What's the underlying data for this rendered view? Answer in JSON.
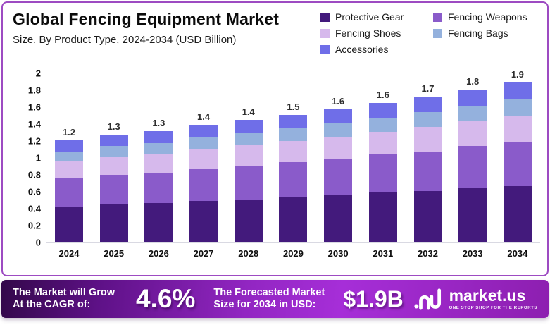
{
  "header": {
    "title": "Global Fencing Equipment Market",
    "subtitle": "Size, By Product Type, 2024-2034 (USD Billion)"
  },
  "chart_data": {
    "type": "bar",
    "stacked": true,
    "title": "Global Fencing Equipment Market Size, By Product Type, 2024-2034 (USD Billion)",
    "categories": [
      "2024",
      "2025",
      "2026",
      "2027",
      "2028",
      "2029",
      "2030",
      "2031",
      "2032",
      "2033",
      "2034"
    ],
    "series": [
      {
        "name": "Protective Gear",
        "color": "#431a7c",
        "values": [
          0.42,
          0.44,
          0.46,
          0.48,
          0.5,
          0.53,
          0.55,
          0.58,
          0.6,
          0.63,
          0.66
        ]
      },
      {
        "name": "Fencing Weapons",
        "color": "#8a5bca",
        "values": [
          0.33,
          0.35,
          0.36,
          0.38,
          0.4,
          0.41,
          0.43,
          0.45,
          0.47,
          0.5,
          0.52
        ]
      },
      {
        "name": "Fencing Shoes",
        "color": "#d6b9ec",
        "values": [
          0.2,
          0.21,
          0.22,
          0.23,
          0.24,
          0.25,
          0.26,
          0.27,
          0.29,
          0.3,
          0.31
        ]
      },
      {
        "name": "Fencing Bags",
        "color": "#94b1dd",
        "values": [
          0.12,
          0.13,
          0.13,
          0.14,
          0.14,
          0.15,
          0.16,
          0.16,
          0.17,
          0.18,
          0.19
        ]
      },
      {
        "name": "Accessories",
        "color": "#6f6ee8",
        "values": [
          0.13,
          0.14,
          0.14,
          0.15,
          0.16,
          0.16,
          0.17,
          0.18,
          0.19,
          0.19,
          0.2
        ]
      }
    ],
    "totals": [
      "1.2",
      "1.3",
      "1.3",
      "1.4",
      "1.4",
      "1.5",
      "1.6",
      "1.6",
      "1.7",
      "1.8",
      "1.9"
    ],
    "ylim": [
      0,
      2
    ],
    "yticks": [
      "0",
      "0.2",
      "0.4",
      "0.6",
      "0.8",
      "1",
      "1.2",
      "1.4",
      "1.6",
      "1.8",
      "2"
    ],
    "grid": false,
    "legend_position": "top-right"
  },
  "banner": {
    "cagr_label_line1": "The Market will Grow",
    "cagr_label_line2": "At the CAGR of:",
    "cagr_value": "4.6%",
    "forecast_label_line1": "The Forecasted Market",
    "forecast_label_line2": "Size for 2034 in USD:",
    "forecast_value": "$1.9B",
    "logo_text": "market.us",
    "logo_tagline": "ONE STOP SHOP FOR THE REPORTS"
  }
}
